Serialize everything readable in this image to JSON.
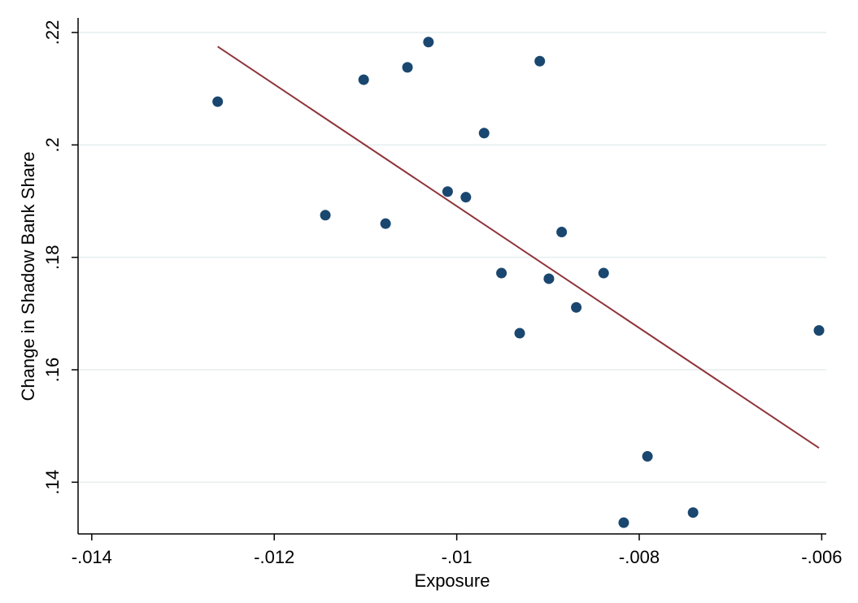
{
  "chart_data": {
    "type": "scatter",
    "title": "",
    "xlabel": "Exposure",
    "ylabel": "Change in Shadow Bank Share",
    "xlim": [
      -0.01415,
      -0.00595
    ],
    "ylim": [
      0.1308,
      0.2226
    ],
    "x_ticks": [
      -0.014,
      -0.012,
      -0.01,
      -0.008,
      -0.006
    ],
    "x_tick_labels": [
      "-.014",
      "-.012",
      "-.01",
      "-.008",
      "-.006"
    ],
    "y_ticks": [
      0.14,
      0.16,
      0.18,
      0.2,
      0.22
    ],
    "y_tick_labels": [
      ".14",
      ".16",
      ".18",
      ".2",
      ".22"
    ],
    "grid": "horizontal",
    "point_color": "#1a476f",
    "line_color": "#90353b",
    "grid_color": "#e4eeee",
    "points": [
      {
        "x": -0.01262,
        "y": 0.2077
      },
      {
        "x": -0.01144,
        "y": 0.1875
      },
      {
        "x": -0.01102,
        "y": 0.2116
      },
      {
        "x": -0.01078,
        "y": 0.186
      },
      {
        "x": -0.01054,
        "y": 0.2138
      },
      {
        "x": -0.01031,
        "y": 0.2183
      },
      {
        "x": -0.0101,
        "y": 0.1917
      },
      {
        "x": -0.0099,
        "y": 0.1907
      },
      {
        "x": -0.0097,
        "y": 0.2021
      },
      {
        "x": -0.00951,
        "y": 0.1772
      },
      {
        "x": -0.00931,
        "y": 0.1665
      },
      {
        "x": -0.00909,
        "y": 0.2149
      },
      {
        "x": -0.00899,
        "y": 0.1762
      },
      {
        "x": -0.00885,
        "y": 0.1845
      },
      {
        "x": -0.00869,
        "y": 0.1711
      },
      {
        "x": -0.00839,
        "y": 0.1772
      },
      {
        "x": -0.00817,
        "y": 0.1328
      },
      {
        "x": -0.00791,
        "y": 0.1446
      },
      {
        "x": -0.00741,
        "y": 0.1346
      },
      {
        "x": -0.00603,
        "y": 0.167
      }
    ],
    "fit_line": {
      "x": [
        -0.01262,
        -0.00603
      ],
      "y": [
        0.2175,
        0.1461
      ]
    }
  }
}
